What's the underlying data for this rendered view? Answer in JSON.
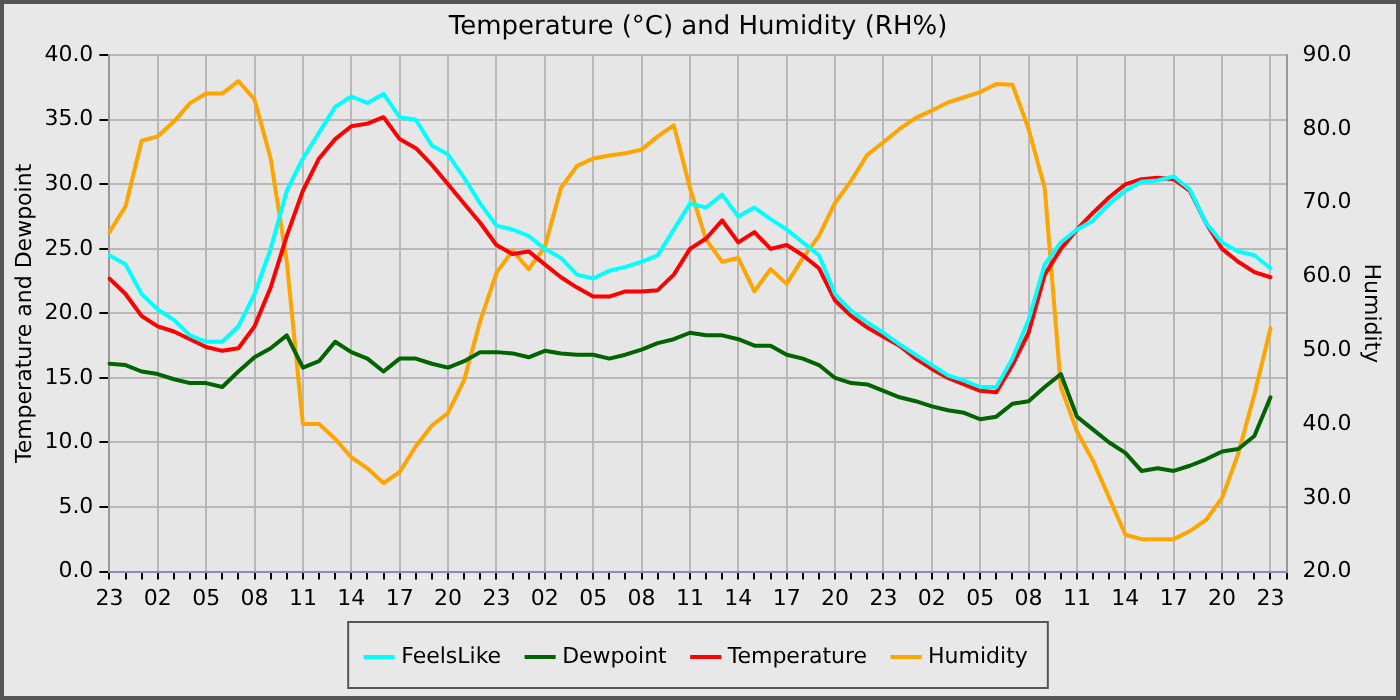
{
  "chart_data": {
    "type": "line",
    "title": "Temperature (°C) and Humidity (RH%)",
    "ylabel": "Temperature and Dewpoint",
    "y2label": "Humidity",
    "categories": [
      "23",
      null,
      null,
      "02",
      null,
      null,
      "05",
      null,
      null,
      "08",
      null,
      null,
      "11",
      null,
      null,
      "14",
      null,
      null,
      "17",
      null,
      null,
      "20",
      null,
      null,
      "23",
      null,
      null,
      "02",
      null,
      null,
      "05",
      null,
      null,
      "08",
      null,
      null,
      "11",
      null,
      null,
      "14",
      null,
      null,
      "17",
      null,
      null,
      "20",
      null,
      null,
      "23",
      null,
      null,
      "02",
      null,
      null,
      "05",
      null,
      null,
      "08",
      null,
      null,
      "11",
      null,
      null,
      "14",
      null,
      null,
      "17",
      null,
      null,
      "20",
      null,
      null,
      "23",
      null
    ],
    "ylim": [
      0,
      40
    ],
    "yticks": [
      {
        "value": 0,
        "label": "0.0"
      },
      {
        "value": 5,
        "label": "5.0"
      },
      {
        "value": 10,
        "label": "10.0"
      },
      {
        "value": 15,
        "label": "15.0"
      },
      {
        "value": 20,
        "label": "20.0"
      },
      {
        "value": 25,
        "label": "25.0"
      },
      {
        "value": 30,
        "label": "30.0"
      },
      {
        "value": 35,
        "label": "35.0"
      },
      {
        "value": 40,
        "label": "40.0"
      }
    ],
    "y2lim": [
      20,
      90
    ],
    "y2ticks": [
      {
        "value": 20,
        "label": "20.0"
      },
      {
        "value": 30,
        "label": "30.0"
      },
      {
        "value": 40,
        "label": "40.0"
      },
      {
        "value": 50,
        "label": "50.0"
      },
      {
        "value": 60,
        "label": "60.0"
      },
      {
        "value": 70,
        "label": "70.0"
      },
      {
        "value": 80,
        "label": "80.0"
      },
      {
        "value": 90,
        "label": "90.0"
      }
    ],
    "grid": true,
    "legend": "bottom",
    "marker": "none",
    "line_style": "solid",
    "series": [
      {
        "name": "FeelsLike",
        "color": "#00ffff",
        "values": [
          24.5,
          23.8,
          21.5,
          20.3,
          19.5,
          18.3,
          17.8,
          17.8,
          19,
          21.5,
          25,
          29.5,
          32,
          34,
          36,
          36.8,
          36.3,
          37,
          35.2,
          35,
          33,
          32.3,
          30.5,
          28.5,
          26.8,
          26.5,
          26,
          25,
          24.3,
          23,
          22.7,
          23.3,
          23.6,
          24,
          24.5,
          26.5,
          28.5,
          28.2,
          29.2,
          27.5,
          28.2,
          27.3,
          26.5,
          25.5,
          24.5,
          21.5,
          20.2,
          19.3,
          18.5,
          17.6,
          16.8,
          16,
          15.2,
          14.8,
          14.3,
          14.3,
          16.5,
          19.5,
          23.8,
          25.5,
          26.5,
          27.2,
          28.5,
          29.5,
          30.2,
          30.3,
          30.6,
          29.6,
          27,
          25.5,
          24.8,
          24.5,
          23.5,
          null
        ]
      },
      {
        "name": "Dewpoint",
        "color": "#006400",
        "values": [
          16.1,
          16,
          15.5,
          15.3,
          14.9,
          14.6,
          14.6,
          14.3,
          15.5,
          16.6,
          17.3,
          18.3,
          15.8,
          16.3,
          17.8,
          17,
          16.5,
          15.5,
          16.5,
          16.5,
          16.1,
          15.8,
          16.3,
          17,
          17,
          16.9,
          16.6,
          17.1,
          16.9,
          16.8,
          16.8,
          16.5,
          16.8,
          17.2,
          17.7,
          18,
          18.5,
          18.3,
          18.3,
          18,
          17.5,
          17.5,
          16.8,
          16.5,
          16,
          15,
          14.6,
          14.5,
          14,
          13.5,
          13.2,
          12.8,
          12.5,
          12.3,
          11.8,
          12,
          13,
          13.2,
          14.3,
          15.3,
          12,
          11,
          10,
          9.2,
          7.8,
          8,
          7.8,
          8.2,
          8.7,
          9.3,
          9.5,
          10.5,
          13.5,
          null
        ]
      },
      {
        "name": "Temperature",
        "color": "#ff0000",
        "values": [
          22.7,
          21.5,
          19.8,
          19,
          18.6,
          18,
          17.4,
          17.1,
          17.3,
          19,
          22,
          26,
          29.5,
          32,
          33.5,
          34.5,
          34.7,
          35.2,
          33.5,
          32.8,
          31.5,
          30,
          28.5,
          27,
          25.3,
          24.6,
          24.8,
          23.8,
          22.8,
          22,
          21.3,
          21.3,
          21.7,
          21.7,
          21.8,
          23,
          25,
          25.8,
          27.2,
          25.5,
          26.3,
          25,
          25.3,
          24.5,
          23.5,
          21,
          19.8,
          18.9,
          18.2,
          17.5,
          16.5,
          15.7,
          15,
          14.5,
          14,
          13.9,
          16,
          18.5,
          23,
          25,
          26.5,
          27.8,
          29,
          30,
          30.4,
          30.5,
          30.4,
          29.5,
          27,
          25,
          24,
          23.2,
          22.8,
          null
        ]
      },
      {
        "name": "Humidity",
        "color": "#ffa500",
        "axis": "y2",
        "values": [
          66,
          69.5,
          78.4,
          79,
          81,
          83.5,
          84.8,
          84.8,
          86.5,
          84,
          76,
          62,
          40,
          40,
          38,
          35.5,
          34,
          32,
          33.5,
          37,
          39.8,
          41.5,
          46,
          54,
          60.5,
          63.5,
          61,
          64,
          72,
          75,
          76,
          76.4,
          76.7,
          77.2,
          79,
          80.5,
          72,
          65,
          62,
          62.5,
          58,
          61,
          59,
          62.5,
          65.5,
          70,
          73,
          76.5,
          78.2,
          80,
          81.5,
          82.5,
          83.6,
          84.3,
          85,
          86.1,
          86,
          80,
          72,
          45,
          39,
          35,
          30,
          25,
          24.4,
          24.4,
          24.4,
          25.5,
          27,
          30,
          36,
          44,
          53,
          null
        ]
      }
    ]
  }
}
